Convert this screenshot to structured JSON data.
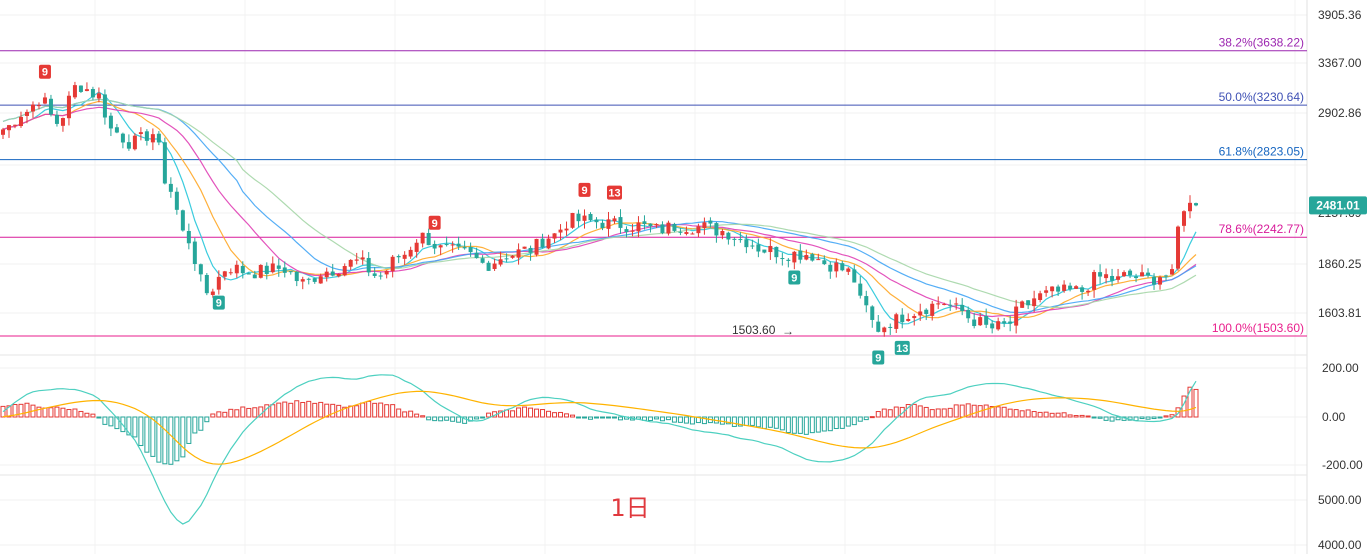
{
  "chart_data": {
    "type": "candlestick",
    "period_label": "1日",
    "last_price": "2481.01",
    "price_axis": {
      "ticks": [
        "3905.36",
        "3367.00",
        "2902.86",
        "2481.01",
        "2157.69",
        "1860.25",
        "1603.81"
      ],
      "range": [
        1503.6,
        3905.36
      ]
    },
    "macd_axis": {
      "ticks": [
        "200.00",
        "0.00",
        "-200.00"
      ],
      "range": [
        -300,
        220
      ]
    },
    "volume_axis": {
      "ticks": [
        "5000.00",
        "4000.00"
      ]
    },
    "fib_levels": [
      {
        "label": "38.2%(3638.22)",
        "value": 3638.22,
        "color": "#9c27b0"
      },
      {
        "label": "50.0%(3230.64)",
        "value": 3230.64,
        "color": "#3f51b5"
      },
      {
        "label": "61.8%(2823.05)",
        "value": 2823.05,
        "color": "#1565c0"
      },
      {
        "label": "78.6%(2242.77)",
        "value": 2242.77,
        "color": "#d81b9a"
      },
      {
        "label": "100.0%(1503.60)",
        "value": 1503.6,
        "color": "#e91e8c"
      }
    ],
    "low_marker": {
      "label": "1503.60",
      "arrow": "→"
    },
    "signals": [
      {
        "text": "9",
        "color": "#e53935",
        "pos": "top",
        "anchor": 0.04
      },
      {
        "text": "9",
        "color": "#26a69a",
        "pos": "bottom",
        "anchor": 0.2
      },
      {
        "text": "9",
        "color": "#e53935",
        "pos": "top",
        "anchor": 0.405
      },
      {
        "text": "9",
        "color": "#e53935",
        "pos": "top",
        "anchor": 0.54
      },
      {
        "text": "13",
        "color": "#e53935",
        "pos": "top",
        "anchor": 0.57
      },
      {
        "text": "9",
        "color": "#26a69a",
        "pos": "bottom",
        "anchor": 0.735
      },
      {
        "text": "9",
        "color": "#26a69a",
        "pos": "bottom",
        "anchor": 0.815
      },
      {
        "text": "13",
        "color": "#26a69a",
        "pos": "bottom",
        "anchor": 0.838
      }
    ],
    "colors": {
      "up": "#e53935",
      "down": "#26a69a",
      "ma1": "#26c6da",
      "ma2": "#ffa726",
      "ma3": "#e040b5",
      "ma4": "#42a5f5",
      "ma5": "#a5d6a7",
      "macd_dif": "#4dd0c0",
      "macd_dea": "#ffb300"
    },
    "close_anchors": [
      [
        0,
        3050
      ],
      [
        0.02,
        3180
      ],
      [
        0.035,
        3280
      ],
      [
        0.05,
        3100
      ],
      [
        0.07,
        3380
      ],
      [
        0.09,
        3300
      ],
      [
        0.1,
        3050
      ],
      [
        0.12,
        2950
      ],
      [
        0.14,
        3020
      ],
      [
        0.155,
        2600
      ],
      [
        0.17,
        2250
      ],
      [
        0.19,
        1830
      ],
      [
        0.21,
        2020
      ],
      [
        0.23,
        1980
      ],
      [
        0.26,
        2010
      ],
      [
        0.28,
        1900
      ],
      [
        0.3,
        1990
      ],
      [
        0.33,
        2060
      ],
      [
        0.35,
        1950
      ],
      [
        0.37,
        2100
      ],
      [
        0.39,
        2250
      ],
      [
        0.41,
        2150
      ],
      [
        0.43,
        2120
      ],
      [
        0.45,
        2040
      ],
      [
        0.47,
        2110
      ],
      [
        0.49,
        2150
      ],
      [
        0.51,
        2250
      ],
      [
        0.53,
        2370
      ],
      [
        0.55,
        2360
      ],
      [
        0.57,
        2340
      ],
      [
        0.59,
        2330
      ],
      [
        0.61,
        2300
      ],
      [
        0.63,
        2330
      ],
      [
        0.65,
        2320
      ],
      [
        0.67,
        2290
      ],
      [
        0.69,
        2220
      ],
      [
        0.71,
        2150
      ],
      [
        0.73,
        2120
      ],
      [
        0.75,
        2120
      ],
      [
        0.77,
        2040
      ],
      [
        0.79,
        1980
      ],
      [
        0.8,
        1750
      ],
      [
        0.815,
        1560
      ],
      [
        0.83,
        1620
      ],
      [
        0.845,
        1680
      ],
      [
        0.86,
        1720
      ],
      [
        0.875,
        1760
      ],
      [
        0.89,
        1700
      ],
      [
        0.905,
        1620
      ],
      [
        0.92,
        1560
      ],
      [
        0.935,
        1580
      ],
      [
        0.95,
        1720
      ],
      [
        0.965,
        1800
      ],
      [
        0.98,
        1830
      ],
      [
        1.0,
        1840
      ]
    ],
    "close_anchors_tail": [
      [
        0,
        1840
      ],
      [
        0.1,
        1930
      ],
      [
        0.2,
        1950
      ],
      [
        0.3,
        1920
      ],
      [
        0.4,
        1960
      ],
      [
        0.5,
        1940
      ],
      [
        0.6,
        1930
      ],
      [
        0.7,
        1960
      ],
      [
        0.8,
        1950
      ],
      [
        0.85,
        2330
      ],
      [
        0.9,
        2480
      ],
      [
        1.0,
        2481
      ]
    ],
    "macd_hist_anchors": [
      [
        0,
        40
      ],
      [
        0.02,
        55
      ],
      [
        0.04,
        40
      ],
      [
        0.06,
        35
      ],
      [
        0.08,
        20
      ],
      [
        0.1,
        -40
      ],
      [
        0.12,
        -80
      ],
      [
        0.135,
        -150
      ],
      [
        0.15,
        -200
      ],
      [
        0.165,
        -180
      ],
      [
        0.18,
        -60
      ],
      [
        0.2,
        20
      ],
      [
        0.23,
        40
      ],
      [
        0.26,
        60
      ],
      [
        0.28,
        65
      ],
      [
        0.3,
        55
      ],
      [
        0.32,
        40
      ],
      [
        0.34,
        60
      ],
      [
        0.36,
        50
      ],
      [
        0.38,
        20
      ],
      [
        0.4,
        -10
      ],
      [
        0.43,
        -25
      ],
      [
        0.46,
        20
      ],
      [
        0.49,
        40
      ],
      [
        0.52,
        15
      ],
      [
        0.55,
        -5
      ],
      [
        0.6,
        -10
      ],
      [
        0.65,
        -25
      ],
      [
        0.7,
        -40
      ],
      [
        0.75,
        -70
      ],
      [
        0.78,
        -50
      ],
      [
        0.8,
        -20
      ],
      [
        0.82,
        30
      ],
      [
        0.85,
        50
      ],
      [
        0.87,
        30
      ],
      [
        0.9,
        55
      ],
      [
        0.93,
        40
      ],
      [
        0.96,
        25
      ],
      [
        1.0,
        10
      ]
    ],
    "macd_hist_tail_anchors": [
      [
        0,
        10
      ],
      [
        0.3,
        -15
      ],
      [
        0.6,
        -10
      ],
      [
        0.8,
        5
      ],
      [
        0.87,
        60
      ],
      [
        0.93,
        130
      ],
      [
        1.0,
        110
      ]
    ]
  }
}
